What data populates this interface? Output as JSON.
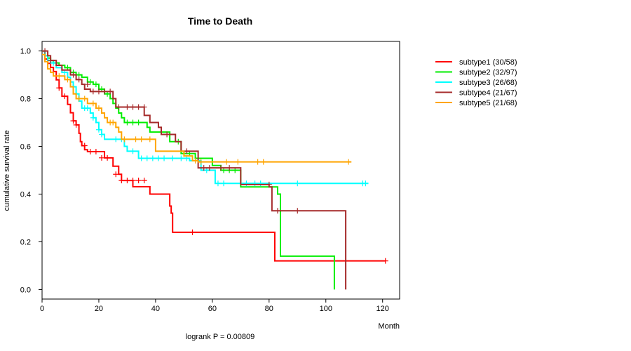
{
  "chart_data": {
    "type": "line",
    "title": "Time to Death",
    "xlabel": "Month",
    "ylabel": "cumulative survival rate",
    "xlim": [
      0,
      126
    ],
    "ylim": [
      -0.04,
      1.04
    ],
    "xticks": [
      0,
      20,
      40,
      60,
      80,
      100,
      120
    ],
    "yticks": [
      "0.0",
      "0.2",
      "0.4",
      "0.6",
      "0.8",
      "1.0"
    ],
    "annotation": "logrank P = 0.00809",
    "legend_position": "right",
    "series": [
      {
        "name": "subtype1 (30/58)",
        "color": "#ff0000",
        "steps": [
          [
            0,
            1.0
          ],
          [
            1,
            0.966
          ],
          [
            2,
            0.948
          ],
          [
            3,
            0.931
          ],
          [
            4,
            0.914
          ],
          [
            5,
            0.879
          ],
          [
            6,
            0.845
          ],
          [
            7,
            0.81
          ],
          [
            9,
            0.776
          ],
          [
            10,
            0.741
          ],
          [
            11,
            0.707
          ],
          [
            12,
            0.69
          ],
          [
            13,
            0.655
          ],
          [
            13.5,
            0.62
          ],
          [
            14,
            0.603
          ],
          [
            15,
            0.586
          ],
          [
            16,
            0.578
          ],
          [
            22,
            0.552
          ],
          [
            25,
            0.517
          ],
          [
            27,
            0.483
          ],
          [
            28,
            0.457
          ],
          [
            32,
            0.431
          ],
          [
            38,
            0.4
          ],
          [
            45,
            0.35
          ],
          [
            45.5,
            0.32
          ],
          [
            46,
            0.24
          ],
          [
            82,
            0.12
          ],
          [
            121,
            0.12
          ]
        ],
        "censor": [
          [
            6,
            0.845
          ],
          [
            8,
            0.81
          ],
          [
            11,
            0.707
          ],
          [
            12,
            0.69
          ],
          [
            15,
            0.603
          ],
          [
            17,
            0.578
          ],
          [
            19,
            0.578
          ],
          [
            21,
            0.552
          ],
          [
            23,
            0.552
          ],
          [
            26,
            0.483
          ],
          [
            28,
            0.457
          ],
          [
            30,
            0.457
          ],
          [
            32,
            0.457
          ],
          [
            34,
            0.457
          ],
          [
            36,
            0.457
          ],
          [
            53,
            0.24
          ],
          [
            121,
            0.12
          ]
        ]
      },
      {
        "name": "subtype2 (32/97)",
        "color": "#00ee00",
        "steps": [
          [
            0,
            1.0
          ],
          [
            1,
            0.98
          ],
          [
            2,
            0.97
          ],
          [
            3,
            0.96
          ],
          [
            4,
            0.95
          ],
          [
            6,
            0.94
          ],
          [
            8,
            0.93
          ],
          [
            10,
            0.91
          ],
          [
            12,
            0.9
          ],
          [
            14,
            0.89
          ],
          [
            16,
            0.87
          ],
          [
            18,
            0.86
          ],
          [
            20,
            0.84
          ],
          [
            22,
            0.82
          ],
          [
            24,
            0.8
          ],
          [
            25,
            0.78
          ],
          [
            26,
            0.76
          ],
          [
            27,
            0.74
          ],
          [
            28,
            0.72
          ],
          [
            29,
            0.7
          ],
          [
            37,
            0.68
          ],
          [
            38,
            0.66
          ],
          [
            45,
            0.62
          ],
          [
            49,
            0.57
          ],
          [
            54,
            0.55
          ],
          [
            60,
            0.52
          ],
          [
            63,
            0.5
          ],
          [
            70,
            0.43
          ],
          [
            83,
            0.4
          ],
          [
            84,
            0.14
          ],
          [
            103,
            0.0
          ]
        ],
        "censor": [
          [
            5,
            0.95
          ],
          [
            9,
            0.93
          ],
          [
            11,
            0.91
          ],
          [
            13,
            0.9
          ],
          [
            17,
            0.87
          ],
          [
            19,
            0.86
          ],
          [
            21,
            0.84
          ],
          [
            23,
            0.82
          ],
          [
            25,
            0.8
          ],
          [
            30,
            0.7
          ],
          [
            32,
            0.7
          ],
          [
            34,
            0.7
          ],
          [
            48,
            0.62
          ],
          [
            50,
            0.57
          ],
          [
            52,
            0.57
          ],
          [
            64,
            0.5
          ],
          [
            66,
            0.5
          ],
          [
            68,
            0.5
          ]
        ]
      },
      {
        "name": "subtype3 (26/68)",
        "color": "#00ffff",
        "steps": [
          [
            0,
            1.0
          ],
          [
            1,
            0.98
          ],
          [
            2,
            0.96
          ],
          [
            3,
            0.95
          ],
          [
            5,
            0.93
          ],
          [
            7,
            0.91
          ],
          [
            9,
            0.89
          ],
          [
            10,
            0.87
          ],
          [
            11,
            0.85
          ],
          [
            12,
            0.82
          ],
          [
            13,
            0.79
          ],
          [
            14,
            0.76
          ],
          [
            17,
            0.74
          ],
          [
            18,
            0.72
          ],
          [
            19,
            0.7
          ],
          [
            20,
            0.67
          ],
          [
            21,
            0.65
          ],
          [
            22,
            0.63
          ],
          [
            29,
            0.6
          ],
          [
            30,
            0.58
          ],
          [
            34,
            0.55
          ],
          [
            52,
            0.54
          ],
          [
            56,
            0.5
          ],
          [
            61,
            0.445
          ],
          [
            115,
            0.445
          ]
        ],
        "censor": [
          [
            4,
            0.95
          ],
          [
            8,
            0.91
          ],
          [
            15,
            0.76
          ],
          [
            16,
            0.76
          ],
          [
            18,
            0.72
          ],
          [
            20,
            0.67
          ],
          [
            21,
            0.65
          ],
          [
            26,
            0.63
          ],
          [
            28,
            0.63
          ],
          [
            32,
            0.58
          ],
          [
            35,
            0.55
          ],
          [
            37,
            0.55
          ],
          [
            39,
            0.55
          ],
          [
            41,
            0.55
          ],
          [
            43,
            0.55
          ],
          [
            46,
            0.55
          ],
          [
            49,
            0.55
          ],
          [
            51,
            0.55
          ],
          [
            58,
            0.5
          ],
          [
            62,
            0.445
          ],
          [
            64,
            0.445
          ],
          [
            72,
            0.445
          ],
          [
            75,
            0.445
          ],
          [
            77,
            0.445
          ],
          [
            90,
            0.445
          ],
          [
            113,
            0.445
          ],
          [
            114,
            0.445
          ]
        ]
      },
      {
        "name": "subtype4 (21/67)",
        "color": "#a52a2a",
        "steps": [
          [
            0,
            1.0
          ],
          [
            2,
            0.98
          ],
          [
            3,
            0.96
          ],
          [
            5,
            0.94
          ],
          [
            7,
            0.92
          ],
          [
            10,
            0.9
          ],
          [
            12,
            0.88
          ],
          [
            14,
            0.86
          ],
          [
            15,
            0.84
          ],
          [
            17,
            0.83
          ],
          [
            25,
            0.8
          ],
          [
            26,
            0.765
          ],
          [
            36,
            0.73
          ],
          [
            38,
            0.7
          ],
          [
            41,
            0.68
          ],
          [
            42,
            0.65
          ],
          [
            47,
            0.62
          ],
          [
            49,
            0.58
          ],
          [
            55,
            0.51
          ],
          [
            70,
            0.44
          ],
          [
            80,
            0.43
          ],
          [
            81,
            0.33
          ],
          [
            107,
            0.0
          ]
        ],
        "censor": [
          [
            1,
            1.0
          ],
          [
            3,
            0.96
          ],
          [
            11,
            0.9
          ],
          [
            13,
            0.88
          ],
          [
            16,
            0.86
          ],
          [
            18,
            0.83
          ],
          [
            20,
            0.83
          ],
          [
            22,
            0.83
          ],
          [
            24,
            0.83
          ],
          [
            27,
            0.765
          ],
          [
            30,
            0.765
          ],
          [
            32,
            0.765
          ],
          [
            34,
            0.765
          ],
          [
            36,
            0.765
          ],
          [
            44,
            0.65
          ],
          [
            51,
            0.58
          ],
          [
            57,
            0.51
          ],
          [
            59,
            0.51
          ],
          [
            63,
            0.51
          ],
          [
            66,
            0.51
          ],
          [
            80,
            0.44
          ],
          [
            83,
            0.33
          ],
          [
            90,
            0.33
          ]
        ]
      },
      {
        "name": "subtype5 (21/68)",
        "color": "#ffa500",
        "steps": [
          [
            0,
            0.985
          ],
          [
            1,
            0.955
          ],
          [
            2,
            0.925
          ],
          [
            3,
            0.91
          ],
          [
            4,
            0.895
          ],
          [
            8,
            0.88
          ],
          [
            10,
            0.85
          ],
          [
            11,
            0.82
          ],
          [
            12,
            0.8
          ],
          [
            16,
            0.78
          ],
          [
            19,
            0.76
          ],
          [
            21,
            0.74
          ],
          [
            22,
            0.72
          ],
          [
            23,
            0.7
          ],
          [
            26,
            0.68
          ],
          [
            27,
            0.66
          ],
          [
            28,
            0.63
          ],
          [
            40,
            0.58
          ],
          [
            50,
            0.56
          ],
          [
            53,
            0.54
          ],
          [
            55,
            0.535
          ],
          [
            109,
            0.535
          ]
        ],
        "censor": [
          [
            6,
            0.895
          ],
          [
            9,
            0.88
          ],
          [
            13,
            0.8
          ],
          [
            15,
            0.8
          ],
          [
            18,
            0.78
          ],
          [
            20,
            0.76
          ],
          [
            24,
            0.7
          ],
          [
            25,
            0.7
          ],
          [
            29,
            0.63
          ],
          [
            33,
            0.63
          ],
          [
            35,
            0.63
          ],
          [
            38,
            0.63
          ],
          [
            54,
            0.54
          ],
          [
            56,
            0.535
          ],
          [
            65,
            0.535
          ],
          [
            69,
            0.535
          ],
          [
            76,
            0.535
          ],
          [
            78,
            0.535
          ],
          [
            108,
            0.535
          ]
        ]
      }
    ]
  }
}
